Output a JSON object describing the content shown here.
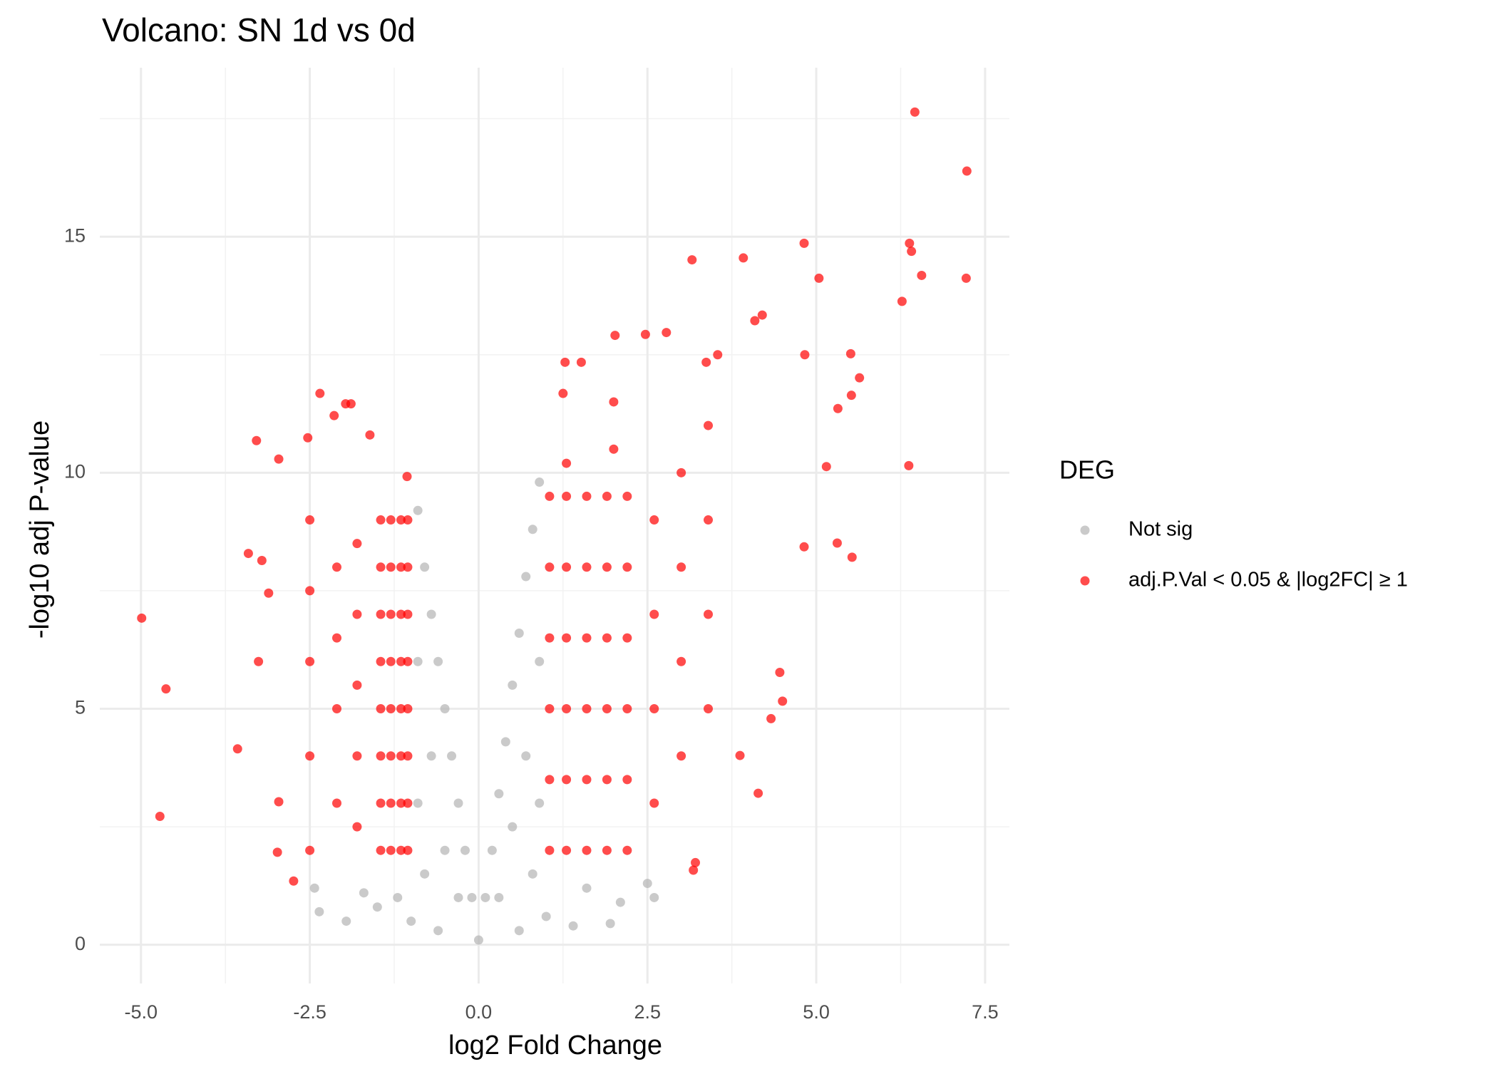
{
  "chart_data": {
    "type": "scatter",
    "title": "Volcano: SN 1d vs 0d",
    "x_label": "log2 Fold Change",
    "y_label": "-log10 adj P-value",
    "legend_title": "DEG",
    "legend_position": "right",
    "grid": true,
    "xlim": [
      -5.61,
      7.86
    ],
    "ylim": [
      -0.82,
      18.58
    ],
    "xticks": [
      {
        "value": -5,
        "label": "-5.0"
      },
      {
        "value": -2.5,
        "label": "-2.5"
      },
      {
        "value": 0,
        "label": "0.0"
      },
      {
        "value": 2.5,
        "label": "2.5"
      },
      {
        "value": 5,
        "label": "5.0"
      },
      {
        "value": 7.5,
        "label": "7.5"
      }
    ],
    "yticks": [
      0,
      5,
      10,
      15
    ],
    "series": [
      {
        "name": "Not sig",
        "color": "#b3b3b3",
        "x": [
          -0.9,
          -0.8,
          -0.7,
          -0.6,
          -0.5,
          -0.4,
          -0.3,
          -0.2,
          -0.1,
          0.0,
          0.1,
          0.2,
          0.3,
          0.4,
          0.5,
          0.6,
          0.7,
          0.8,
          0.9,
          -0.9,
          -0.9,
          -0.7,
          -0.5,
          -0.3,
          0.3,
          0.5,
          0.7,
          0.9,
          0.9,
          -2.43,
          -2.36,
          -1.96,
          -1.7,
          -1.5,
          -1.2,
          -1.0,
          -0.6,
          0.6,
          1.0,
          1.4,
          1.95,
          2.1,
          2.5,
          2.6,
          1.6,
          -0.8,
          0.8
        ],
        "values": [
          9.2,
          8.0,
          7.0,
          6.0,
          5.0,
          4.0,
          3.0,
          2.0,
          1.0,
          0.1,
          1.0,
          2.0,
          3.2,
          4.3,
          5.5,
          6.6,
          7.8,
          8.8,
          9.8,
          6,
          3,
          4,
          2,
          1,
          1,
          2.5,
          4,
          6,
          3,
          1.2,
          0.7,
          0.5,
          1.1,
          0.8,
          1.0,
          0.5,
          0.3,
          0.3,
          0.6,
          0.4,
          0.45,
          0.9,
          1.3,
          1.0,
          1.2,
          1.5,
          1.5
        ]
      },
      {
        "name": "adj.P.Val < 0.05 & |log2FC| ≥ 1",
        "color": "#ff0000",
        "x": [
          -4.99,
          -4.63,
          -3.57,
          -4.72,
          6.46,
          7.23,
          7.22,
          6.56,
          6.38,
          6.41,
          6.27,
          6.37,
          4.82,
          5.04,
          3.92,
          3.16,
          4.2,
          4.09,
          5.64,
          5.51,
          5.52,
          5.32,
          4.83,
          3.54,
          3.37,
          5.15,
          5.53,
          5.31,
          4.82,
          4.46,
          4.5,
          4.33,
          4.14,
          3.87,
          3.18,
          3.21,
          2.47,
          2.78,
          2.02,
          1.52,
          1.28,
          1.25,
          -2.35,
          -1.97,
          -1.89,
          -1.61,
          -3.29,
          -3.41,
          -3.26,
          -2.96,
          -2.74,
          -2.98,
          -2.96,
          -3.11,
          -3.21,
          -2.14,
          -2.53,
          -1.06,
          -1.45,
          -1.45,
          -1.45,
          -1.45,
          -1.45,
          -1.45,
          -1.45,
          -1.45,
          -1.3,
          -1.3,
          -1.3,
          -1.3,
          -1.3,
          -1.3,
          -1.3,
          -1.3,
          -1.15,
          -1.15,
          -1.15,
          -1.15,
          -1.15,
          -1.15,
          -1.15,
          -1.15,
          -1.05,
          -1.05,
          -1.05,
          -1.05,
          -1.05,
          -1.05,
          -1.05,
          -1.05,
          -1.8,
          -1.8,
          -1.8,
          -1.8,
          -1.8,
          -2.1,
          -2.1,
          -2.1,
          -2.1,
          -2.5,
          -2.5,
          -2.5,
          -2.5,
          -2.5,
          1.05,
          1.05,
          1.05,
          1.05,
          1.05,
          1.05,
          1.3,
          1.3,
          1.3,
          1.3,
          1.3,
          1.3,
          1.6,
          1.6,
          1.6,
          1.6,
          1.6,
          1.6,
          1.9,
          1.9,
          1.9,
          1.9,
          1.9,
          1.9,
          2.2,
          2.2,
          2.2,
          2.2,
          2.2,
          2.2,
          2.6,
          2.6,
          2.6,
          2.6,
          3.0,
          3.0,
          3.0,
          3.0,
          3.4,
          3.4,
          3.4,
          3.4,
          2.0,
          2.0,
          1.3
        ],
        "values": [
          6.92,
          5.42,
          4.15,
          2.72,
          17.64,
          16.39,
          14.12,
          14.18,
          14.86,
          14.69,
          13.63,
          10.15,
          14.86,
          14.12,
          14.55,
          14.51,
          13.34,
          13.22,
          12.01,
          12.52,
          11.64,
          11.36,
          12.5,
          12.5,
          12.34,
          10.13,
          8.21,
          8.51,
          8.43,
          5.77,
          5.16,
          4.79,
          3.21,
          4.01,
          1.58,
          1.74,
          12.93,
          12.97,
          12.91,
          12.34,
          12.34,
          11.68,
          11.68,
          11.46,
          11.46,
          10.8,
          10.68,
          8.29,
          6.0,
          10.29,
          1.35,
          1.96,
          3.03,
          7.45,
          8.14,
          11.21,
          10.74,
          9.92,
          2,
          3,
          4,
          5,
          6,
          7,
          8,
          9,
          2,
          3,
          4,
          5,
          6,
          7,
          8,
          9,
          2,
          3,
          4,
          5,
          6,
          7,
          8,
          9,
          2,
          3,
          4,
          5,
          6,
          7,
          8,
          9,
          2.5,
          4,
          5.5,
          7,
          8.5,
          3,
          5,
          6.5,
          8,
          2,
          4,
          6,
          7.5,
          9,
          2,
          3.5,
          5,
          6.5,
          8,
          9.5,
          2,
          3.5,
          5,
          6.5,
          8,
          9.5,
          2,
          3.5,
          5,
          6.5,
          8,
          9.5,
          2,
          3.5,
          5,
          6.5,
          8,
          9.5,
          2,
          3.5,
          5,
          6.5,
          8,
          9.5,
          3,
          5,
          7,
          9,
          4,
          6,
          8,
          10,
          5,
          7,
          9,
          11,
          10.5,
          11.5,
          10.2
        ]
      }
    ]
  }
}
